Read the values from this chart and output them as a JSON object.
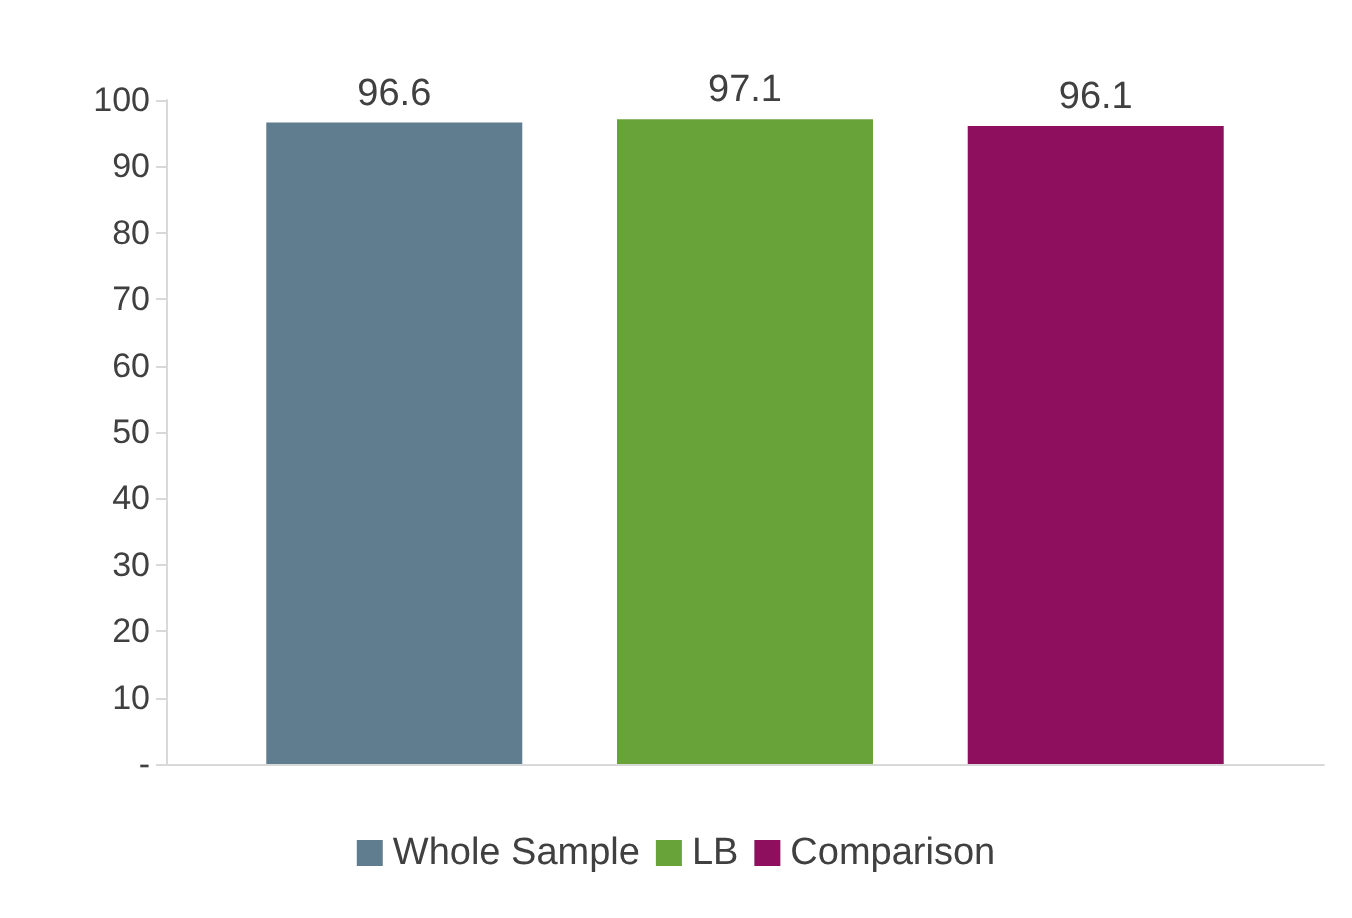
{
  "chart_data": {
    "type": "bar",
    "categories": [
      null
    ],
    "series": [
      {
        "name": "Whole Sample",
        "color": "#607d8f",
        "values": [
          96.6
        ]
      },
      {
        "name": "LB",
        "color": "#68a33a",
        "values": [
          97.1
        ]
      },
      {
        "name": "Comparison",
        "color": "#8e0f5e",
        "values": [
          96.1
        ]
      }
    ],
    "ylim": [
      0,
      100
    ],
    "yticks": [
      {
        "value": 0,
        "label": "-"
      },
      10,
      20,
      30,
      40,
      50,
      60,
      70,
      80,
      90,
      100
    ],
    "data_labels": true,
    "legend": "bottom",
    "grid": false
  }
}
